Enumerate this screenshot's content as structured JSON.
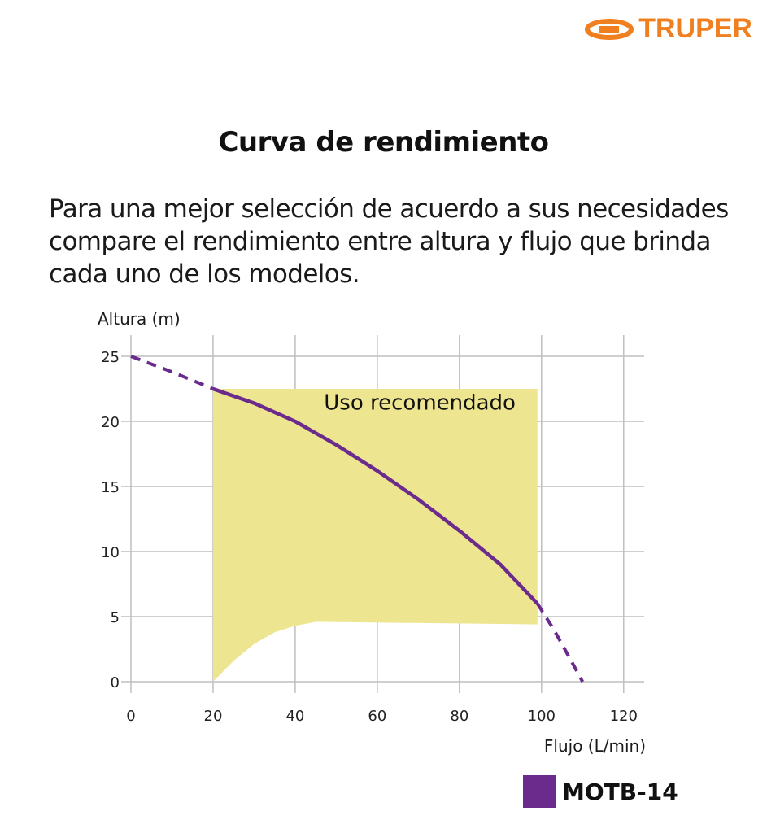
{
  "brand": {
    "name": "TRUPER",
    "color": "#f07f1f"
  },
  "title": "Curva de rendimiento",
  "intro": "Para una mejor selección de acuerdo a sus necesidades compare el rendimiento entre altura y flujo que brinda cada uno de los modelos.",
  "chart_data": {
    "type": "line",
    "title": "Curva de rendimiento",
    "xlabel": "Flujo (L/min)",
    "ylabel": "Altura (m)",
    "xlim": [
      0,
      125
    ],
    "ylim": [
      0,
      25
    ],
    "x_ticks": [
      0,
      20,
      40,
      60,
      80,
      100,
      120
    ],
    "y_ticks": [
      0,
      5,
      10,
      15,
      20,
      25
    ],
    "grid": true,
    "legend_position": "bottom-right",
    "series": [
      {
        "name": "MOTB-14",
        "color": "#6a2b8c",
        "points": [
          [
            0,
            25
          ],
          [
            10,
            23.8
          ],
          [
            20,
            22.5
          ],
          [
            30,
            21.4
          ],
          [
            40,
            20
          ],
          [
            50,
            18.2
          ],
          [
            60,
            16.2
          ],
          [
            70,
            14
          ],
          [
            80,
            11.6
          ],
          [
            90,
            9
          ],
          [
            99,
            6
          ],
          [
            103,
            4
          ],
          [
            106,
            2.3
          ],
          [
            110,
            0
          ]
        ],
        "solid_range": [
          20,
          99
        ]
      }
    ],
    "annotation": {
      "label": "Uso recomendado",
      "color": "#eee590",
      "x_range": [
        20,
        99
      ],
      "upper": 22.5,
      "lower_boundary": [
        [
          20,
          0
        ],
        [
          25,
          1.6
        ],
        [
          30,
          2.9
        ],
        [
          35,
          3.8
        ],
        [
          40,
          4.3
        ],
        [
          45,
          4.6
        ],
        [
          99,
          4.4
        ]
      ]
    }
  }
}
